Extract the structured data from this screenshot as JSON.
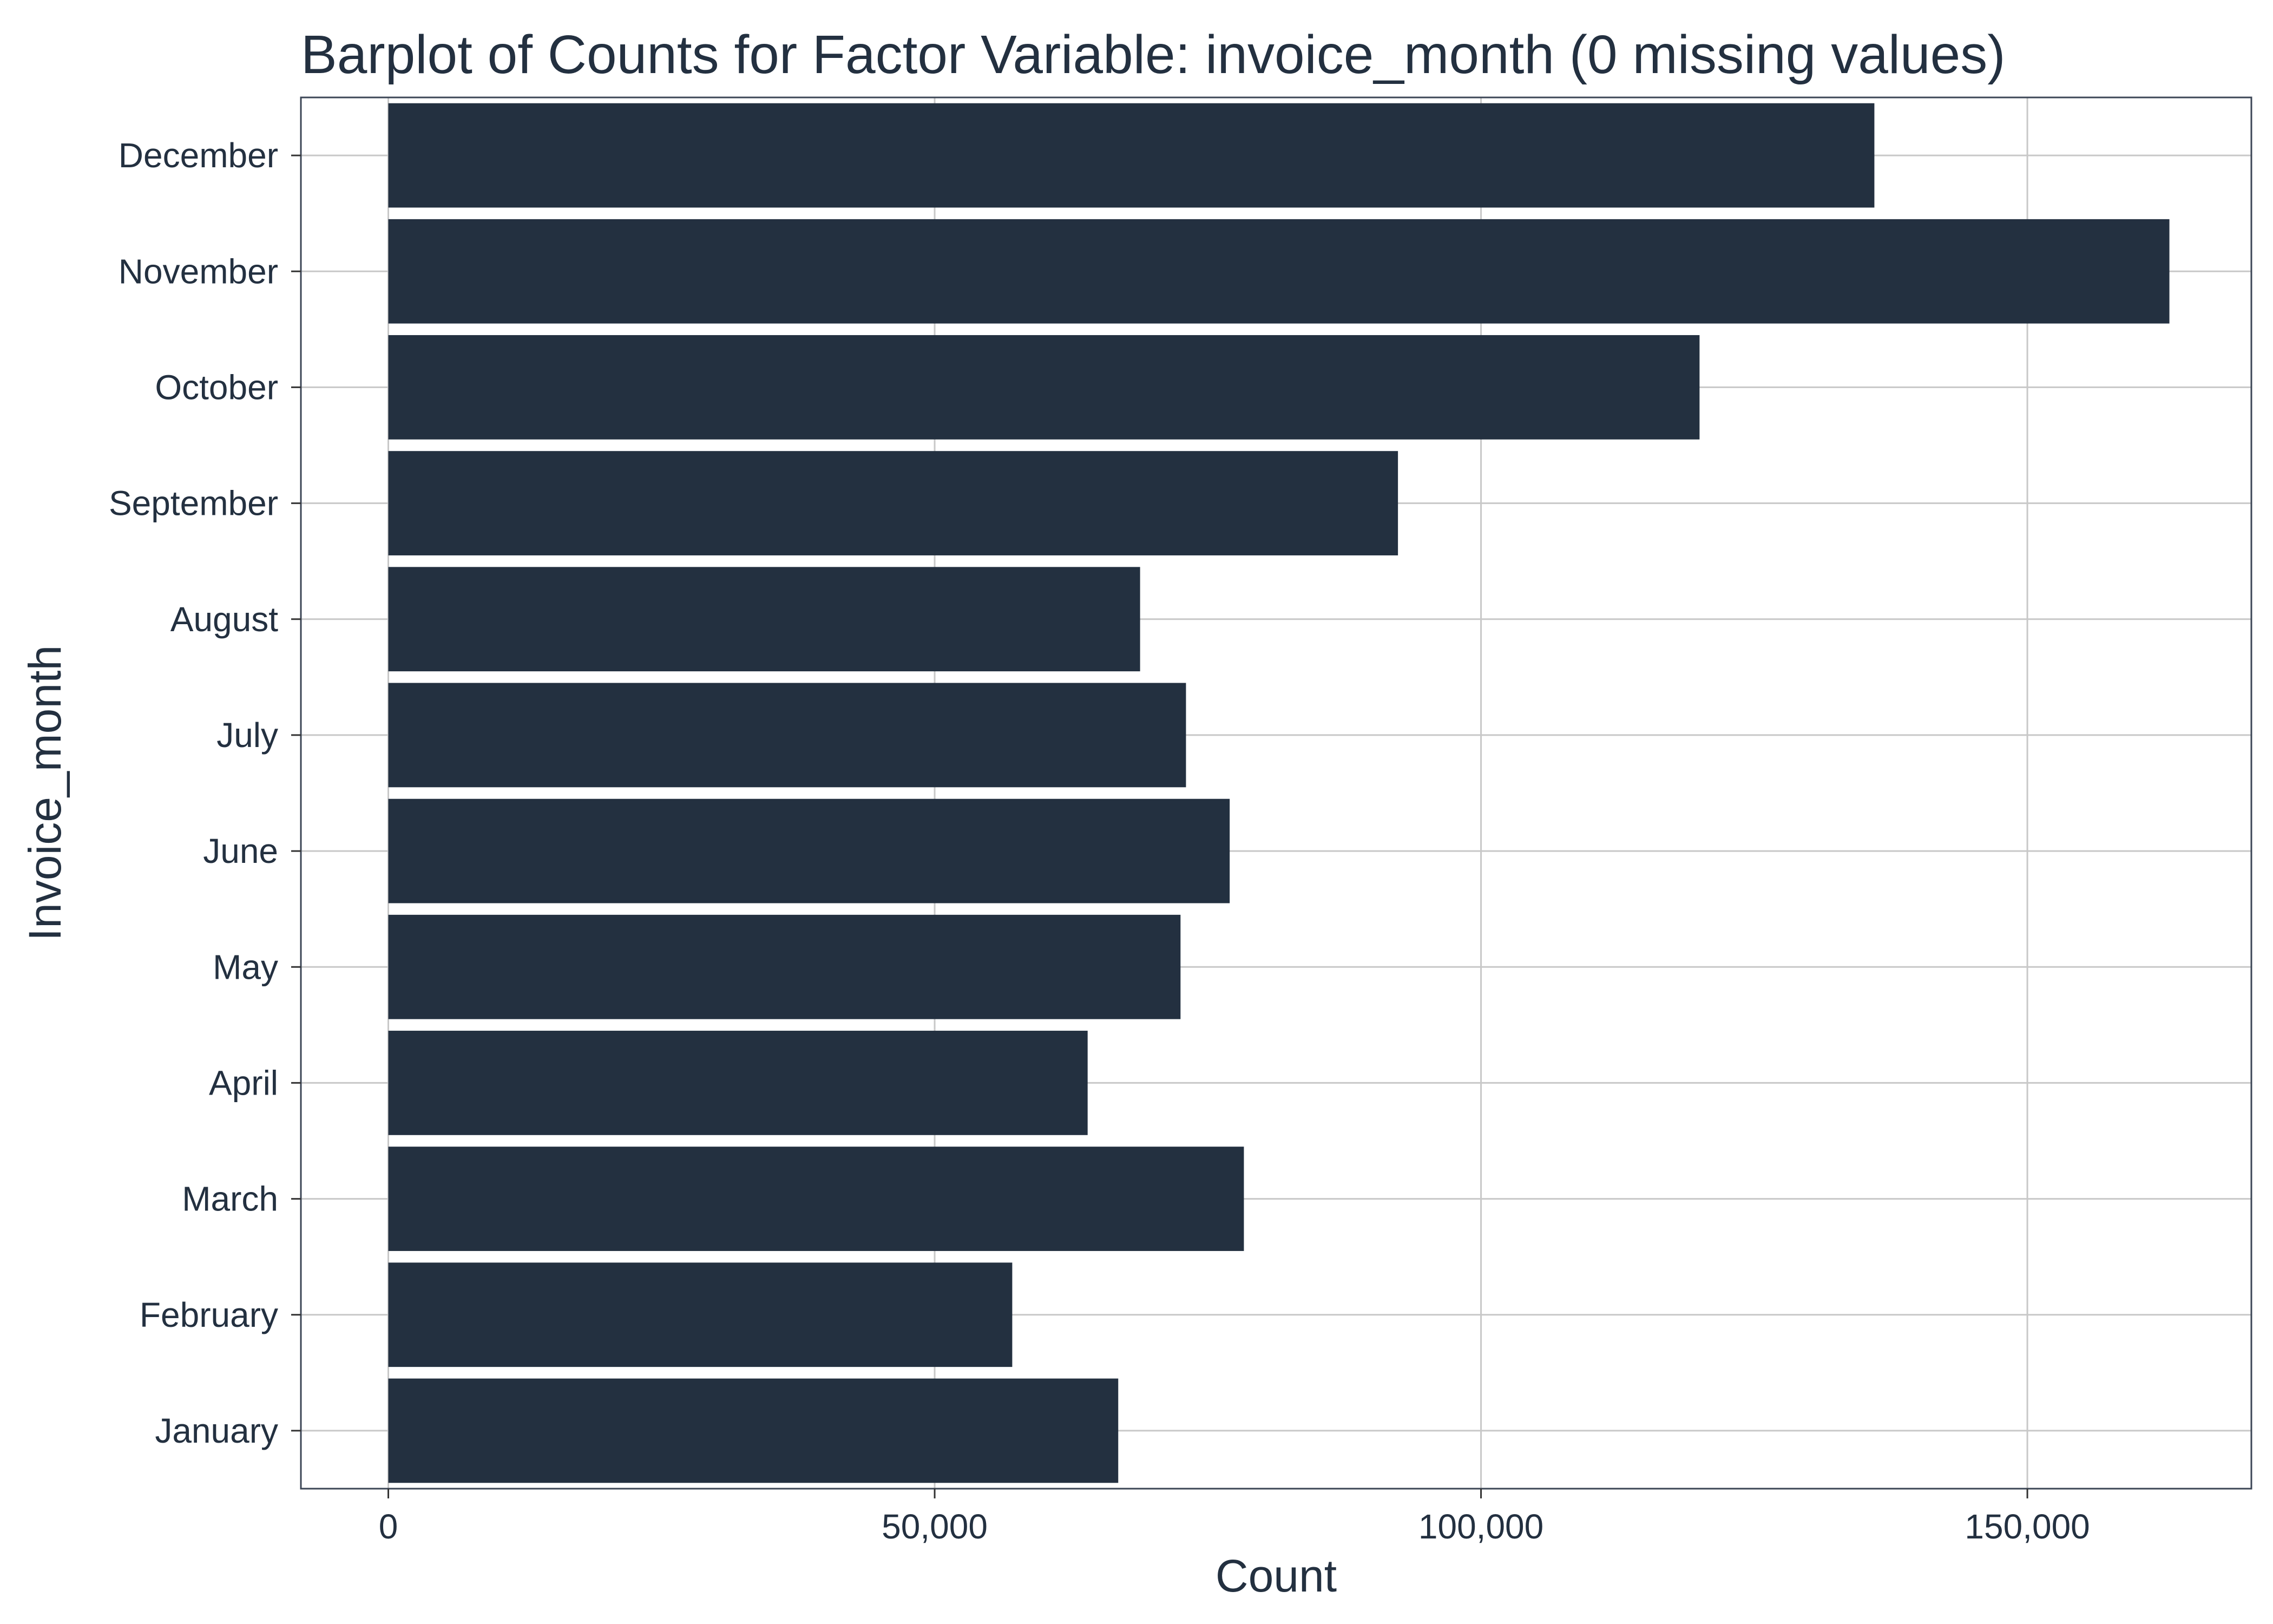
{
  "chart_data": {
    "type": "bar",
    "orientation": "horizontal",
    "title": "Barplot of Counts for Factor Variable: invoice_month (0 missing values)",
    "xlabel": "Count",
    "ylabel": "Invoice_month",
    "categories": [
      "December",
      "November",
      "October",
      "September",
      "August",
      "July",
      "June",
      "May",
      "April",
      "March",
      "February",
      "January"
    ],
    "values": [
      136000,
      163000,
      120000,
      92400,
      68800,
      73000,
      77000,
      72500,
      64000,
      78300,
      57100,
      66800
    ],
    "xlim": [
      -8000,
      170500
    ],
    "xticks": [
      0,
      50000,
      100000,
      150000
    ],
    "xtick_labels": [
      "0",
      "50,000",
      "100,000",
      "150,000"
    ],
    "bar_color": "#233040",
    "grid": true,
    "legend": "none"
  }
}
